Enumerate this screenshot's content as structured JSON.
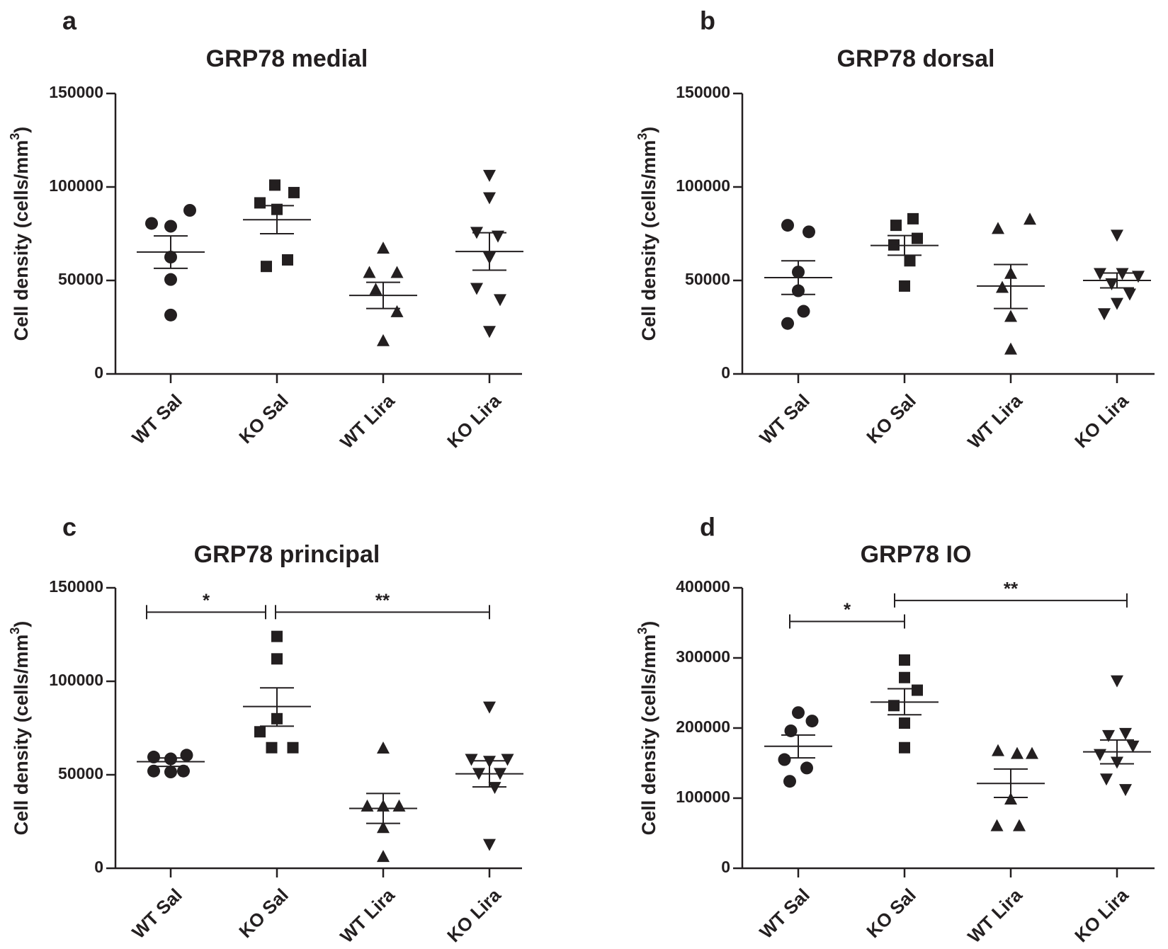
{
  "chart_data": [
    {
      "type": "scatter",
      "panel_letter": "a",
      "title": "GRP78 medial",
      "ylabel": "Cell density (cells/mm",
      "ylabel_sup": "3",
      "ylabel_end": ")",
      "ylim": [
        0,
        150000
      ],
      "yticks": [
        0,
        50000,
        100000,
        150000
      ],
      "ytick_labels": [
        "0",
        "50000",
        "100000",
        "150000"
      ],
      "categories": [
        "WT Sal",
        "KO Sal",
        "WT Lira",
        "KO Lira"
      ],
      "markers": [
        "circle",
        "square",
        "triangle-up",
        "triangle-down"
      ],
      "groups": [
        {
          "name": "WT Sal",
          "points": [
            [
              -0.18,
              80500
            ],
            [
              0.0,
              79000
            ],
            [
              0.18,
              87500
            ],
            [
              0.0,
              62500
            ],
            [
              0.0,
              50500
            ],
            [
              0.0,
              31500
            ]
          ],
          "mean": 65200,
          "sem_low": 56500,
          "sem_high": 73800
        },
        {
          "name": "KO Sal",
          "points": [
            [
              -0.02,
              101000
            ],
            [
              0.16,
              97000
            ],
            [
              -0.16,
              91500
            ],
            [
              0.0,
              88000
            ],
            [
              0.1,
              61000
            ],
            [
              -0.1,
              57500
            ]
          ],
          "mean": 82500,
          "sem_low": 75000,
          "sem_high": 90000
        },
        {
          "name": "WT Lira",
          "points": [
            [
              0.0,
              67000
            ],
            [
              -0.13,
              54000
            ],
            [
              0.13,
              54000
            ],
            [
              -0.07,
              45000
            ],
            [
              0.13,
              33000
            ],
            [
              0.0,
              17500
            ]
          ],
          "mean": 42000,
          "sem_low": 35000,
          "sem_high": 49000
        },
        {
          "name": "KO Lira",
          "points": [
            [
              0.0,
              106500
            ],
            [
              0.0,
              94500
            ],
            [
              -0.12,
              76000
            ],
            [
              0.08,
              74000
            ],
            [
              0.0,
              62500
            ],
            [
              -0.12,
              46000
            ],
            [
              0.1,
              40000
            ],
            [
              0.0,
              23000
            ]
          ],
          "mean": 65500,
          "sem_low": 55500,
          "sem_high": 75500
        }
      ],
      "significance": []
    },
    {
      "type": "scatter",
      "panel_letter": "b",
      "title": "GRP78 dorsal",
      "ylabel": "Cell density (cells/mm",
      "ylabel_sup": "3",
      "ylabel_end": ")",
      "ylim": [
        0,
        150000
      ],
      "yticks": [
        0,
        50000,
        100000,
        150000
      ],
      "ytick_labels": [
        "0",
        "50000",
        "100000",
        "150000"
      ],
      "categories": [
        "WT Sal",
        "KO Sal",
        "WT Lira",
        "KO Lira"
      ],
      "markers": [
        "circle",
        "square",
        "triangle-up",
        "triangle-down"
      ],
      "groups": [
        {
          "name": "WT Sal",
          "points": [
            [
              -0.1,
              79500
            ],
            [
              0.1,
              76000
            ],
            [
              0.0,
              54500
            ],
            [
              0.0,
              44500
            ],
            [
              0.05,
              33500
            ],
            [
              -0.1,
              27000
            ]
          ],
          "mean": 51500,
          "sem_low": 42500,
          "sem_high": 60500
        },
        {
          "name": "KO Sal",
          "points": [
            [
              0.08,
              83000
            ],
            [
              -0.08,
              79500
            ],
            [
              0.12,
              72500
            ],
            [
              -0.1,
              69000
            ],
            [
              0.05,
              60500
            ],
            [
              0.0,
              47000
            ]
          ],
          "mean": 68700,
          "sem_low": 63500,
          "sem_high": 74000
        },
        {
          "name": "WT Lira",
          "points": [
            [
              0.18,
              82500
            ],
            [
              -0.12,
              77500
            ],
            [
              0.0,
              53500
            ],
            [
              -0.08,
              46000
            ],
            [
              0.0,
              30500
            ],
            [
              0.0,
              13000
            ]
          ],
          "mean": 47000,
          "sem_low": 35000,
          "sem_high": 58500
        },
        {
          "name": "KO Lira",
          "points": [
            [
              0.0,
              74500
            ],
            [
              -0.16,
              54000
            ],
            [
              0.05,
              54000
            ],
            [
              0.2,
              52500
            ],
            [
              -0.05,
              48500
            ],
            [
              0.12,
              43000
            ],
            [
              0.0,
              38000
            ],
            [
              -0.12,
              32500
            ]
          ],
          "mean": 50000,
          "sem_low": 46000,
          "sem_high": 54000
        }
      ],
      "significance": []
    },
    {
      "type": "scatter",
      "panel_letter": "c",
      "title": "GRP78 principal",
      "ylabel": "Cell density (cells/mm",
      "ylabel_sup": "3",
      "ylabel_end": ")",
      "ylim": [
        0,
        150000
      ],
      "yticks": [
        0,
        50000,
        100000,
        150000
      ],
      "ytick_labels": [
        "0",
        "50000",
        "100000",
        "150000"
      ],
      "categories": [
        "WT Sal",
        "KO Sal",
        "WT Lira",
        "KO Lira"
      ],
      "markers": [
        "circle",
        "square",
        "triangle-up",
        "triangle-down"
      ],
      "groups": [
        {
          "name": "WT Sal",
          "points": [
            [
              -0.16,
              59500
            ],
            [
              0.0,
              58500
            ],
            [
              0.15,
              60500
            ],
            [
              -0.16,
              52000
            ],
            [
              0.12,
              52000
            ],
            [
              0.0,
              51500
            ]
          ],
          "mean": 57000,
          "sem_low": 54500,
          "sem_high": 59000
        },
        {
          "name": "KO Sal",
          "points": [
            [
              0.0,
              124000
            ],
            [
              0.0,
              112000
            ],
            [
              0.0,
              80000
            ],
            [
              -0.16,
              73000
            ],
            [
              -0.05,
              64500
            ],
            [
              0.15,
              64500
            ]
          ],
          "mean": 86500,
          "sem_low": 76000,
          "sem_high": 96500
        },
        {
          "name": "WT Lira",
          "points": [
            [
              0.0,
              64000
            ],
            [
              -0.15,
              33000
            ],
            [
              0.0,
              33000
            ],
            [
              0.15,
              33000
            ],
            [
              0.0,
              21500
            ],
            [
              0.0,
              6000
            ]
          ],
          "mean": 32000,
          "sem_low": 24000,
          "sem_high": 40000
        },
        {
          "name": "KO Lira",
          "points": [
            [
              0.0,
              86500
            ],
            [
              -0.17,
              58500
            ],
            [
              0.0,
              57500
            ],
            [
              0.17,
              58500
            ],
            [
              -0.1,
              51000
            ],
            [
              0.1,
              51000
            ],
            [
              0.05,
              43500
            ],
            [
              0.0,
              13000
            ]
          ],
          "mean": 50500,
          "sem_low": 43500,
          "sem_high": 57500
        }
      ],
      "significance": [
        {
          "from": 0,
          "to": 1,
          "label": "*",
          "y": 137000
        },
        {
          "from": 1,
          "to": 3,
          "label": "**",
          "y": 137000
        }
      ]
    },
    {
      "type": "scatter",
      "panel_letter": "d",
      "title": "GRP78 IO",
      "ylabel": "Cell density (cells/mm",
      "ylabel_sup": "3",
      "ylabel_end": ")",
      "ylim": [
        0,
        400000
      ],
      "yticks": [
        0,
        100000,
        200000,
        300000,
        400000
      ],
      "ytick_labels": [
        "0",
        "100000",
        "200000",
        "300000",
        "400000"
      ],
      "categories": [
        "WT Sal",
        "KO Sal",
        "WT Lira",
        "KO Lira"
      ],
      "markers": [
        "circle",
        "square",
        "triangle-up",
        "triangle-down"
      ],
      "groups": [
        {
          "name": "WT Sal",
          "points": [
            [
              0.0,
              222000
            ],
            [
              0.13,
              210000
            ],
            [
              -0.07,
              196000
            ],
            [
              -0.13,
              155000
            ],
            [
              0.08,
              143000
            ],
            [
              -0.08,
              124000
            ]
          ],
          "mean": 174000,
          "sem_low": 157500,
          "sem_high": 190000
        },
        {
          "name": "KO Sal",
          "points": [
            [
              0.0,
              297000
            ],
            [
              0.0,
              272000
            ],
            [
              0.12,
              254000
            ],
            [
              -0.1,
              232000
            ],
            [
              0.0,
              207000
            ],
            [
              0.0,
              172000
            ]
          ],
          "mean": 237000,
          "sem_low": 219000,
          "sem_high": 256000
        },
        {
          "name": "WT Lira",
          "points": [
            [
              -0.12,
              167000
            ],
            [
              0.06,
              163000
            ],
            [
              0.2,
              163000
            ],
            [
              0.0,
              98000
            ],
            [
              -0.13,
              60000
            ],
            [
              0.08,
              60000
            ]
          ],
          "mean": 121000,
          "sem_low": 101000,
          "sem_high": 141500
        },
        {
          "name": "KO Lira",
          "points": [
            [
              0.0,
              268000
            ],
            [
              -0.08,
              190000
            ],
            [
              0.08,
              193000
            ],
            [
              -0.16,
              163000
            ],
            [
              0.15,
              175000
            ],
            [
              0.0,
              152000
            ],
            [
              -0.1,
              128000
            ],
            [
              0.08,
              113000
            ]
          ],
          "mean": 166000,
          "sem_low": 149000,
          "sem_high": 183000
        }
      ],
      "significance": [
        {
          "from": 0,
          "to": 1,
          "label": "*",
          "y": 352000,
          "label_offset": -0.2
        },
        {
          "from": 1,
          "to": 3,
          "label": "**",
          "y": 382000
        }
      ]
    }
  ]
}
